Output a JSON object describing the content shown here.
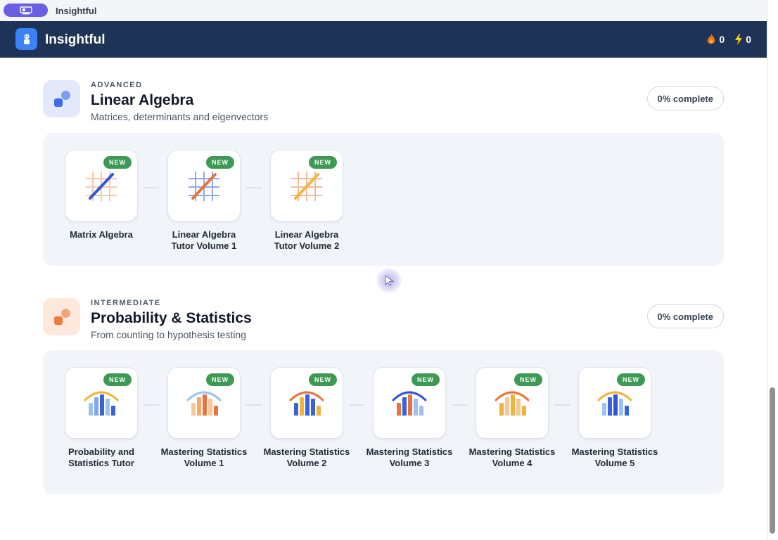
{
  "window": {
    "title": "Insightful"
  },
  "app": {
    "name": "Insightful",
    "stats": [
      {
        "icon": "flame-icon",
        "value": "0"
      },
      {
        "icon": "lightning-icon",
        "value": "0"
      }
    ]
  },
  "colors": {
    "header": "#1e3356",
    "accent": "#3b82f6",
    "badge": "#3d9a55"
  },
  "sections": [
    {
      "level": "ADVANCED",
      "title": "Linear Algebra",
      "subtitle": "Matrices, determinants and eigenvectors",
      "progress": "0% complete",
      "courses": [
        {
          "name": "Matrix Algebra",
          "badge": "NEW",
          "icon": "linear-grid-icon"
        },
        {
          "name": "Linear Algebra Tutor Volume 1",
          "badge": "NEW",
          "icon": "linear-grid-icon"
        },
        {
          "name": "Linear Algebra Tutor Volume 2",
          "badge": "NEW",
          "icon": "linear-grid-icon"
        }
      ]
    },
    {
      "level": "INTERMEDIATE",
      "title": "Probability & Statistics",
      "subtitle": "From counting to hypothesis testing",
      "progress": "0% complete",
      "courses": [
        {
          "name": "Probability and Statistics Tutor",
          "badge": "NEW",
          "icon": "bar-chart-icon"
        },
        {
          "name": "Mastering Statistics Volume 1",
          "badge": "NEW",
          "icon": "bar-chart-icon"
        },
        {
          "name": "Mastering Statistics Volume 2",
          "badge": "NEW",
          "icon": "bar-chart-icon"
        },
        {
          "name": "Mastering Statistics Volume 3",
          "badge": "NEW",
          "icon": "bar-chart-icon"
        },
        {
          "name": "Mastering Statistics Volume 4",
          "badge": "NEW",
          "icon": "bar-chart-icon"
        },
        {
          "name": "Mastering Statistics Volume 5",
          "badge": "NEW",
          "icon": "bar-chart-icon"
        }
      ]
    }
  ]
}
